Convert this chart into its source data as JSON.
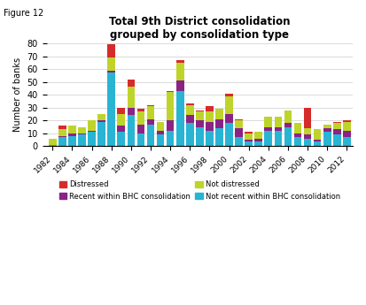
{
  "years": [
    1982,
    1983,
    1984,
    1985,
    1986,
    1987,
    1988,
    1989,
    1990,
    1991,
    1992,
    1993,
    1994,
    1995,
    1996,
    1997,
    1998,
    1999,
    2000,
    2001,
    2002,
    2003,
    2004,
    2005,
    2006,
    2007,
    2008,
    2009,
    2010,
    2011,
    2012
  ],
  "not_recent_bhc": [
    1,
    7,
    8,
    9,
    11,
    19,
    57,
    11,
    24,
    10,
    17,
    9,
    12,
    43,
    18,
    15,
    12,
    14,
    18,
    7,
    4,
    4,
    12,
    12,
    15,
    7,
    6,
    4,
    11,
    9,
    7
  ],
  "recent_bhc": [
    0,
    1,
    2,
    1,
    1,
    1,
    2,
    5,
    6,
    7,
    4,
    3,
    8,
    8,
    6,
    5,
    7,
    7,
    7,
    7,
    1,
    2,
    3,
    3,
    3,
    3,
    3,
    1,
    3,
    4,
    5
  ],
  "not_distressed": [
    5,
    5,
    6,
    5,
    8,
    5,
    10,
    9,
    16,
    10,
    10,
    7,
    22,
    14,
    8,
    7,
    8,
    8,
    14,
    6,
    5,
    5,
    8,
    8,
    10,
    8,
    5,
    8,
    3,
    5,
    7
  ],
  "distressed": [
    0,
    3,
    0,
    0,
    0,
    0,
    10,
    5,
    6,
    2,
    1,
    0,
    1,
    2,
    1,
    1,
    4,
    0,
    2,
    1,
    1,
    0,
    0,
    0,
    0,
    0,
    16,
    0,
    0,
    1,
    1
  ],
  "colors": {
    "distressed": "#d62b2b",
    "not_distressed": "#bed42b",
    "recent_bhc": "#8b2385",
    "not_recent_bhc": "#29b4d4"
  },
  "title": "Total 9th District consolidation\ngrouped by consolidation type",
  "ylabel": "Number of banks",
  "ylim": [
    0,
    80
  ],
  "yticks": [
    0,
    10,
    20,
    30,
    40,
    50,
    60,
    70,
    80
  ],
  "figure_label": "Figure 12",
  "legend_order": [
    "distressed",
    "recent_bhc",
    "not_distressed",
    "not_recent_bhc"
  ],
  "legend": {
    "distressed": "Distressed",
    "not_distressed": "Not distressed",
    "recent_bhc": "Recent within BHC consolidation",
    "not_recent_bhc": "Not recent within BHC consolidation"
  }
}
